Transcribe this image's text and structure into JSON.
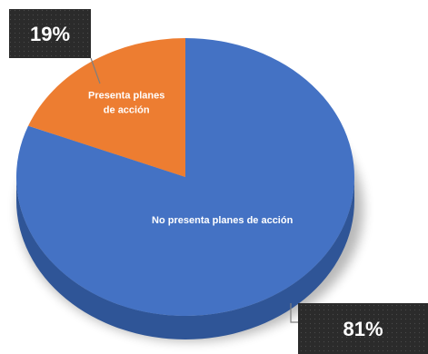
{
  "chart_data": {
    "type": "pie",
    "style": "3d",
    "categories": [
      "No presenta planes de acción",
      "Presenta planes de acción"
    ],
    "values": [
      81,
      19
    ],
    "display_labels": [
      "81%",
      "19%"
    ],
    "slice_labels": [
      [
        "No presenta planes de acción"
      ],
      [
        "Presenta planes",
        "de acción"
      ]
    ],
    "colors": [
      "#4472C4",
      "#ED7D31"
    ],
    "side_colors": [
      "#2F5597",
      "#B55A1E"
    ],
    "callout_color": "#2B2B2B",
    "title": "",
    "legend": "none"
  }
}
